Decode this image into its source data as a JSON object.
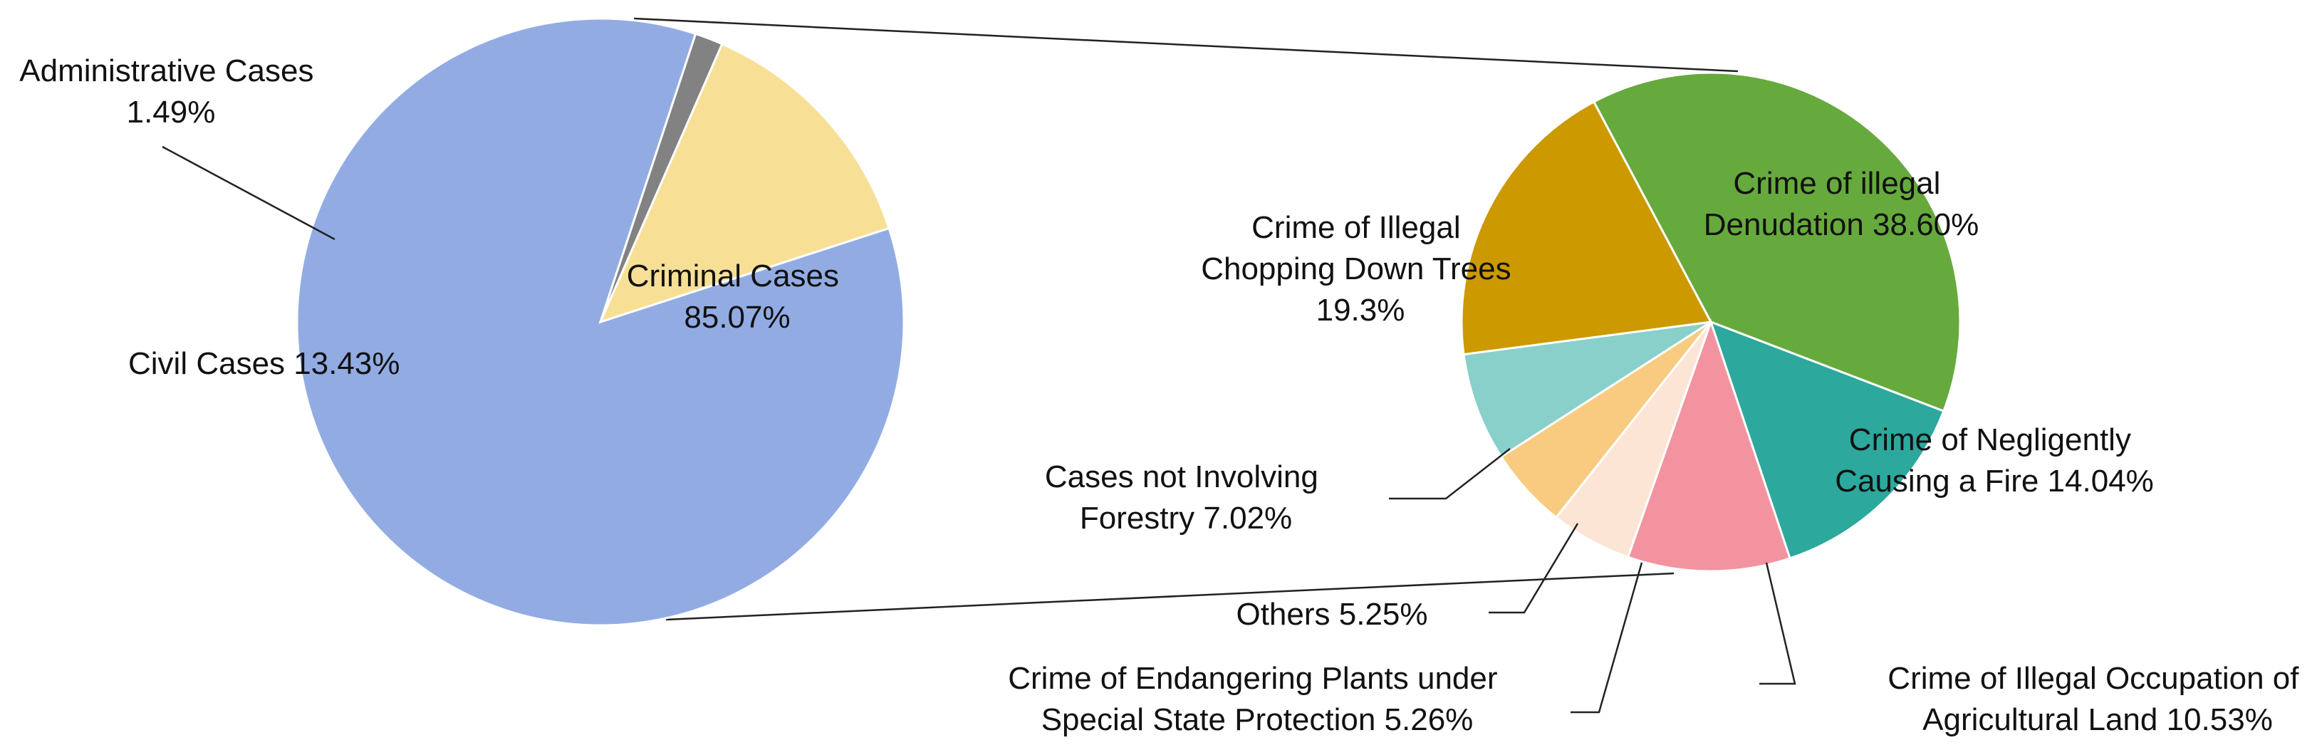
{
  "chart_data": [
    {
      "type": "pie",
      "slices": [
        {
          "name": "Criminal Cases",
          "value_label": "85.07%",
          "value": 85.07,
          "color": "#92ACE3"
        },
        {
          "name": "Administrative Cases",
          "value_label": "1.49%",
          "value": 1.49,
          "color": "#828282"
        },
        {
          "name": "Civil Cases",
          "value_label": "13.43%",
          "value": 13.43,
          "color": "#F7E096"
        }
      ]
    },
    {
      "type": "pie",
      "parent_slice": "Criminal Cases",
      "slices": [
        {
          "name": "Crime of illegal Denudation",
          "value_label": "38.60%",
          "value": 38.6,
          "color": "#66AA3D"
        },
        {
          "name": "Crime of Negligently Causing a Fire",
          "value_label": "14.04%",
          "value": 14.04,
          "color": "#2CA89D"
        },
        {
          "name": "Crime of Illegal Occupation of Agricultural Land",
          "value_label": "10.53%",
          "value": 10.53,
          "color": "#F2939F"
        },
        {
          "name": "Crime of Endangering Plants under Special State Protection",
          "value_label": "5.26%",
          "value": 5.26,
          "color": "#FCE5D4"
        },
        {
          "name": "Others",
          "value_label": "5.25%",
          "value": 5.25,
          "color": "#F8CB81"
        },
        {
          "name": "Cases not Involving Forestry",
          "value_label": "7.02%",
          "value": 7.02,
          "color": "#88D0C9"
        },
        {
          "name": "Crime of Illegal Chopping Down Trees",
          "value_label": "19.3%",
          "value": 19.3,
          "color": "#CC9900"
        }
      ]
    }
  ],
  "labels": {
    "criminal": [
      "Criminal Cases",
      "85.07%"
    ],
    "administrative": [
      "Administrative Cases",
      "1.49%"
    ],
    "civil": [
      "Civil Cases 13.43%"
    ],
    "denudation": [
      "Crime of illegal",
      "Denudation 38.60%"
    ],
    "chopping": [
      "Crime of Illegal",
      "Chopping Down Trees",
      "19.3%"
    ],
    "fire": [
      "Crime of Negligently",
      "Causing a Fire 14.04%"
    ],
    "not_forestry": [
      "Cases not Involving",
      "Forestry 7.02%"
    ],
    "others": [
      "Others 5.25%"
    ],
    "endangering": [
      "Crime of Endangering Plants under",
      "Special State Protection 5.26%"
    ],
    "agricultural": [
      "Crime of Illegal Occupation of",
      "Agricultural Land 10.53%"
    ]
  }
}
